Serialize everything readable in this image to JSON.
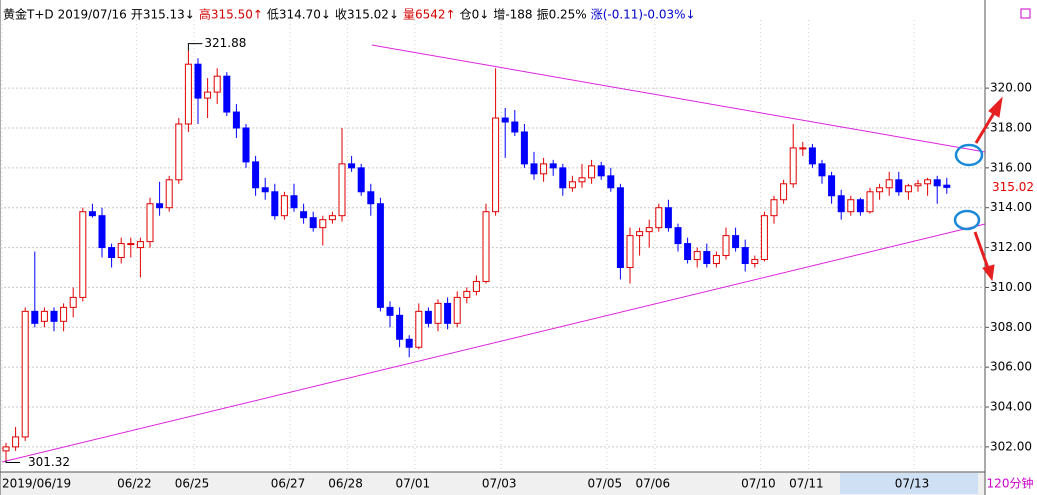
{
  "chart_data": {
    "type": "candlestick",
    "header": [
      {
        "text": "黄金T+D",
        "color": "#000000"
      },
      {
        "text": "2019/07/16",
        "color": "#000000"
      },
      {
        "text": "开315.13↓",
        "color": "#000000"
      },
      {
        "text": "高315.50↑",
        "color": "#d40000"
      },
      {
        "text": "低314.70↓",
        "color": "#000000"
      },
      {
        "text": "收315.02↓",
        "color": "#000000"
      },
      {
        "text": "量6542↑",
        "color": "#d40000"
      },
      {
        "text": "仓0↓",
        "color": "#000000"
      },
      {
        "text": "增-188",
        "color": "#000000"
      },
      {
        "text": "振0.25%",
        "color": "#000000"
      },
      {
        "text": "涨(-0.11)-0.03%↓",
        "color": "#0000cc"
      }
    ],
    "period": "120分钟",
    "max_label": "321.88",
    "min_label": "301.32",
    "last_label": "315.02",
    "up_color": "#e00000",
    "down_color": "#0000ff",
    "grid": true,
    "ylim": [
      300.74,
      324.02
    ],
    "yticks": [
      {
        "value": 302,
        "label": "302.00"
      },
      {
        "value": 304,
        "label": "304.00"
      },
      {
        "value": 306,
        "label": "306.00"
      },
      {
        "value": 308,
        "label": "308.00"
      },
      {
        "value": 310,
        "label": "310.00"
      },
      {
        "value": 312,
        "label": "312.00"
      },
      {
        "value": 314,
        "label": "314.00"
      },
      {
        "value": 316,
        "label": "316.00"
      },
      {
        "value": 318,
        "label": "318.00"
      },
      {
        "value": 320,
        "label": "320.00"
      }
    ],
    "categories": [
      "2019/06/19",
      null,
      null,
      null,
      null,
      null,
      null,
      null,
      null,
      null,
      null,
      null,
      null,
      null,
      "06/22",
      null,
      null,
      null,
      null,
      null,
      "06/25",
      null,
      null,
      null,
      null,
      null,
      null,
      null,
      null,
      null,
      "06/27",
      null,
      null,
      null,
      null,
      null,
      "06/28",
      null,
      null,
      null,
      null,
      null,
      null,
      "07/01",
      null,
      null,
      null,
      null,
      null,
      null,
      null,
      null,
      "07/03",
      null,
      null,
      null,
      null,
      null,
      null,
      null,
      null,
      null,
      null,
      "07/05",
      null,
      null,
      null,
      null,
      "07/06",
      null,
      null,
      null,
      null,
      null,
      null,
      null,
      null,
      null,
      null,
      "07/10",
      null,
      null,
      null,
      null,
      "07/11",
      null,
      null,
      null,
      null,
      null,
      null,
      null,
      null,
      null,
      null,
      "07/13",
      null,
      null,
      null
    ],
    "open": [
      301.8,
      302,
      302.5,
      308.8,
      308.3,
      308.8,
      308.3,
      309,
      309.5,
      313.8,
      313.6,
      312,
      311.5,
      312.2,
      312,
      312.3,
      314.2,
      314,
      315.4,
      318.2,
      321.2,
      319.5,
      319.8,
      320.6,
      318.8,
      318,
      316.3,
      315,
      314.8,
      313.6,
      314.6,
      313.8,
      313.5,
      313,
      313.4,
      313.6,
      316.2,
      316,
      314.8,
      314.2,
      309,
      308.6,
      307.4,
      307,
      308.8,
      308.2,
      309.2,
      308.2,
      309.5,
      309.8,
      310.3,
      313.8,
      318.5,
      318.3,
      317.8,
      316.2,
      315.7,
      316.2,
      316,
      315,
      315.3,
      315.5,
      316.1,
      315.6,
      315,
      311,
      312.6,
      312.8,
      313,
      314,
      313,
      312.2,
      311.4,
      311.8,
      311.2,
      311.6,
      312.6,
      312,
      311.2,
      311.4,
      313.6,
      314.4,
      315.2,
      317,
      317,
      316.2,
      315.6,
      314.6,
      313.8,
      314.4,
      313.8,
      314.8,
      315,
      315.4,
      314.8,
      315.1,
      315.2,
      315.4,
      315.13
    ],
    "high": [
      302.2,
      303,
      309,
      311.8,
      309,
      309,
      309.2,
      310,
      314,
      314.2,
      314,
      312.2,
      312.5,
      312.5,
      312.5,
      314.5,
      315.3,
      315.6,
      318.5,
      321.88,
      321.5,
      320.5,
      321,
      320.8,
      319.2,
      318.2,
      316.6,
      315.5,
      315.2,
      314.8,
      315.2,
      314.2,
      313.8,
      313.6,
      313.8,
      318,
      316.6,
      316.2,
      315.2,
      314.5,
      309.3,
      309,
      307.6,
      309.2,
      309,
      309.4,
      309.5,
      309.8,
      310,
      310.6,
      314.2,
      321,
      319,
      318.9,
      318.2,
      316.8,
      316.5,
      316.4,
      316.2,
      315.6,
      316.2,
      316.4,
      316.3,
      316,
      315.2,
      313,
      313,
      313.4,
      314.2,
      314.4,
      313.2,
      312.5,
      312,
      312.2,
      311.8,
      313,
      313,
      312.4,
      311.6,
      313.8,
      314.6,
      315.4,
      318.2,
      317.3,
      317.2,
      316.4,
      315.8,
      314.9,
      314.6,
      314.5,
      315,
      315.2,
      315.8,
      315.8,
      315.2,
      315.4,
      315.5,
      315.6,
      315.5
    ],
    "low": [
      301.32,
      301.8,
      302.3,
      308,
      308,
      307.8,
      307.8,
      308.5,
      309.3,
      313.5,
      311.5,
      311,
      311.2,
      311.5,
      310.5,
      312,
      313.6,
      313.8,
      315.2,
      317.8,
      318.2,
      318.5,
      319.2,
      318.6,
      317.5,
      316,
      314.6,
      314.4,
      313.4,
      313.4,
      313.8,
      313.2,
      312.8,
      312.1,
      313.2,
      313.3,
      315.8,
      314.6,
      313.6,
      308.8,
      308,
      307,
      306.5,
      306.9,
      308,
      307.8,
      307.9,
      308,
      309.2,
      309.6,
      310.2,
      313.6,
      316.5,
      317.6,
      316,
      315.4,
      315.3,
      315.6,
      314.6,
      314.8,
      315,
      315.2,
      315.4,
      314.8,
      310.4,
      310.2,
      311.6,
      312,
      312.8,
      312.8,
      311.8,
      311.2,
      311,
      311,
      311,
      311.4,
      311.8,
      310.8,
      311,
      311.3,
      313.2,
      314.2,
      315,
      316.6,
      316,
      315.2,
      314.2,
      313.4,
      313.6,
      313.6,
      313.7,
      314.4,
      314.6,
      314.6,
      314.4,
      314.8,
      314.6,
      314.2,
      314.7
    ],
    "close": [
      302,
      302.5,
      308.8,
      308.2,
      308.8,
      308.3,
      309,
      309.5,
      313.8,
      313.6,
      312,
      311.5,
      312.2,
      312.2,
      312.3,
      314.2,
      314,
      315.4,
      318.2,
      321.2,
      319.5,
      319.8,
      320.6,
      318.8,
      318,
      316.3,
      315,
      314.8,
      313.6,
      314.6,
      314,
      313.5,
      313,
      313.4,
      313.6,
      316.2,
      316,
      314.8,
      314.2,
      309,
      308.6,
      307.4,
      307,
      308.8,
      308.2,
      309.2,
      308.2,
      309.5,
      309.8,
      310.3,
      313.8,
      318.5,
      318.3,
      317.8,
      316.2,
      315.7,
      316.2,
      316,
      315,
      315.3,
      315.5,
      316.1,
      315.6,
      315,
      311,
      312.6,
      312.8,
      313,
      314,
      313,
      312.2,
      311.4,
      311.8,
      311.2,
      311.6,
      312.6,
      312,
      311.2,
      311.4,
      313.6,
      314.4,
      315.2,
      317,
      317,
      316.2,
      315.6,
      314.6,
      313.8,
      314.4,
      313.8,
      314.8,
      315,
      315.4,
      314.8,
      315.1,
      315.2,
      315.4,
      315.1,
      315.02
    ]
  }
}
